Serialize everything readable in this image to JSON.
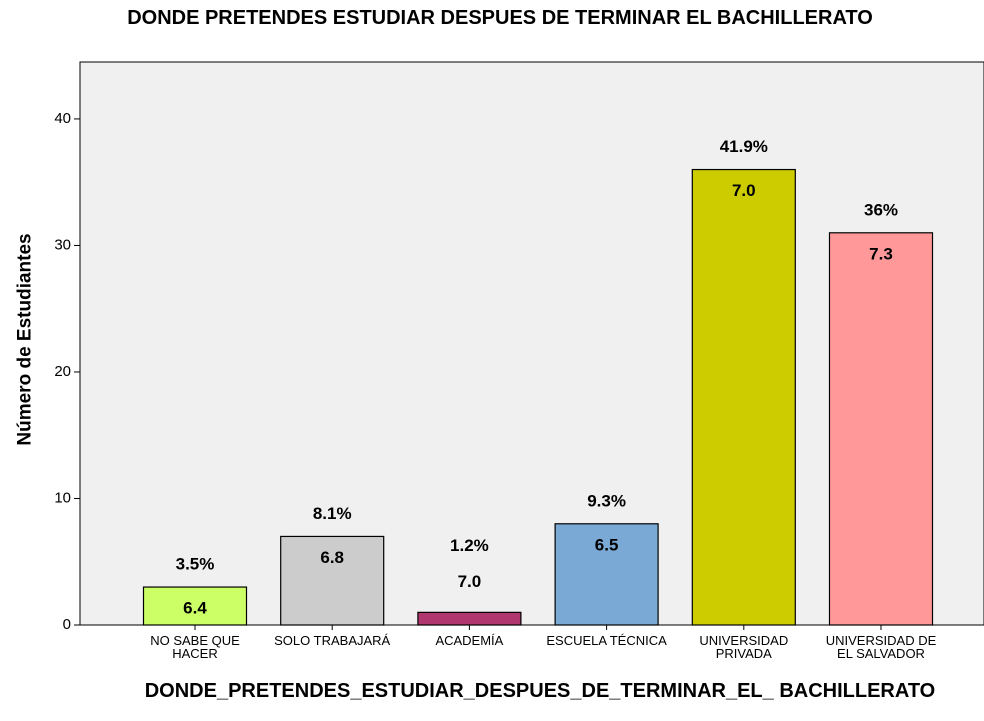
{
  "chart_data": {
    "type": "bar",
    "title": "DONDE PRETENDES ESTUDIAR DESPUES DE TERMINAR EL BACHILLERATO",
    "x_label": "DONDE_PRETENDES_ESTUDIAR_DESPUES_DE_TERMINAR_EL_ BACHILLERATO",
    "y_label": "Número de Estudiantes",
    "categories": [
      "NO SABE QUE HACER",
      "SOLO TRABAJARÁ",
      "ACADEMÍA",
      "ESCUELA TÉCNICA",
      "UNIVERSIDAD PRIVADA",
      "UNIVERSIDAD DE EL SALVADOR"
    ],
    "values": [
      3,
      7,
      1,
      8,
      36,
      31
    ],
    "colors": [
      "#ccff66",
      "#cccccc",
      "#b03670",
      "#7aa9d6",
      "#cccc00",
      "#ff9999"
    ],
    "percent_labels": [
      "3.5%",
      "8.1%",
      "1.2%",
      "9.3%",
      "41.9%",
      "36%"
    ],
    "inner_labels": [
      "6.4",
      "6.8",
      "7.0",
      "6.5",
      "7.0",
      "7.3"
    ],
    "ylim": [
      0,
      44.5
    ],
    "yticks": [
      0,
      10,
      20,
      30,
      40
    ]
  }
}
